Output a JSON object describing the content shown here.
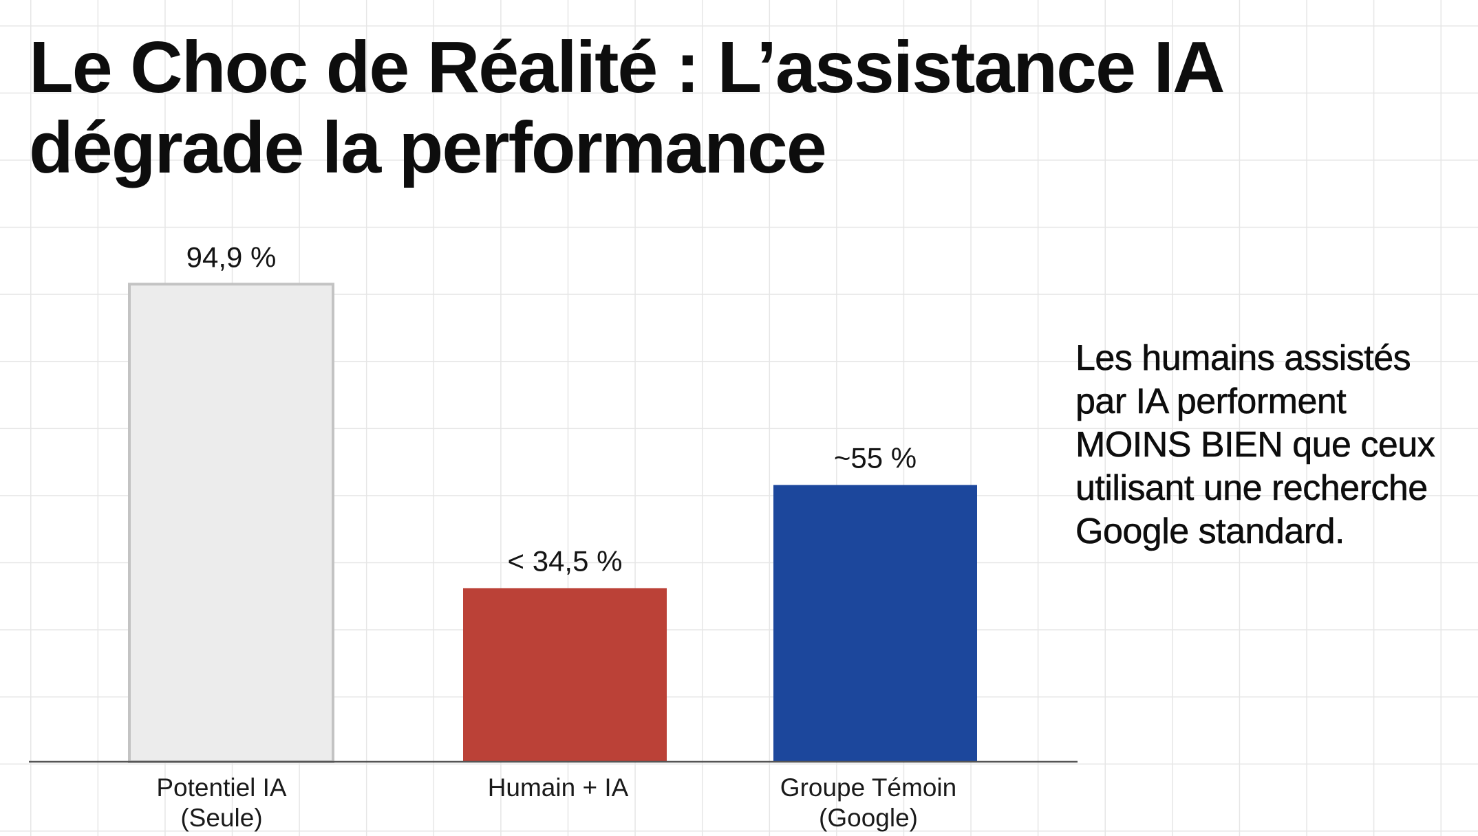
{
  "title_lines": [
    "Le Choc de Réalité : L’assistance IA",
    "dégrade la performance"
  ],
  "side_note": "Les humains assistés par IA performent MOINS BIEN que ceux utilisant une recherche Google standard.",
  "chart_data": {
    "type": "bar",
    "title": "Le Choc de Réalité : L’assistance IA dégrade la performance",
    "categories": [
      [
        "Potentiel IA",
        "(Seule)"
      ],
      [
        "Humain + IA"
      ],
      [
        "Groupe Témoin",
        "(Google)"
      ]
    ],
    "values": [
      94.9,
      34.5,
      55
    ],
    "data_labels": [
      "94,9 %",
      "< 34,5 %",
      "~55 %"
    ],
    "colors": [
      "#ececec",
      "#bb4137",
      "#1c479c"
    ],
    "outline_colors": [
      "#c3c3c3",
      "#bb4137",
      "#1c479c"
    ],
    "ylim": [
      0,
      100
    ],
    "xlabel": "",
    "ylabel": "",
    "grid": false,
    "legend": "none"
  }
}
